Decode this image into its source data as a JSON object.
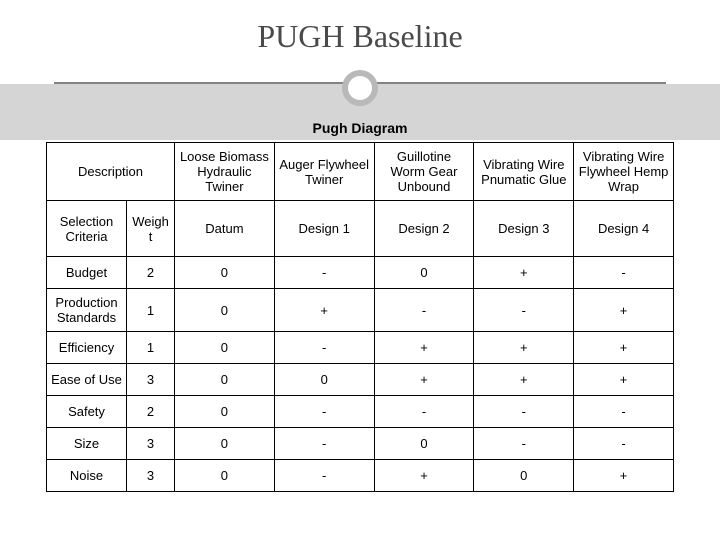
{
  "title": "PUGH Baseline",
  "caption": "Pugh Diagram",
  "descriptionLabel": "Description",
  "designs": [
    "Loose Biomass Hydraulic Twiner",
    "Auger Flywheel Twiner",
    "Guillotine Worm Gear Unbound",
    "Vibrating Wire Pnumatic Glue",
    "Vibrating Wire Flywheel Hemp Wrap"
  ],
  "criteriaLabel": "Selection Criteria",
  "weightLabel": "Weight",
  "designHeaders": [
    "Datum",
    "Design 1",
    "Design 2",
    "Design 3",
    "Design 4"
  ],
  "rows": [
    {
      "criterion": "Budget",
      "weight": "2",
      "scores": [
        "0",
        "-",
        "0",
        "+",
        "-"
      ]
    },
    {
      "criterion": "Production Standards",
      "weight": "1",
      "scores": [
        "0",
        "+",
        "-",
        "-",
        "+"
      ]
    },
    {
      "criterion": "Efficiency",
      "weight": "1",
      "scores": [
        "0",
        "-",
        "+",
        "+",
        "+"
      ]
    },
    {
      "criterion": "Ease of Use",
      "weight": "3",
      "scores": [
        "0",
        "0",
        "+",
        "+",
        "+"
      ]
    },
    {
      "criterion": "Safety",
      "weight": "2",
      "scores": [
        "0",
        "-",
        "-",
        "-",
        "-"
      ]
    },
    {
      "criterion": "Size",
      "weight": "3",
      "scores": [
        "0",
        "-",
        "0",
        "-",
        "-"
      ]
    },
    {
      "criterion": "Noise",
      "weight": "3",
      "scores": [
        "0",
        "-",
        "+",
        "0",
        "+"
      ]
    }
  ],
  "style": {
    "title_color": "#4a4a4a",
    "band_color": "#d5d5d5",
    "rule_color": "#838383",
    "circle_border": "#b9b9b9",
    "border_color": "#000000",
    "bg_color": "#ffffff",
    "title_fontsize_pt": 24,
    "caption_fontsize_pt": 11,
    "table_fontsize_pt": 10
  }
}
